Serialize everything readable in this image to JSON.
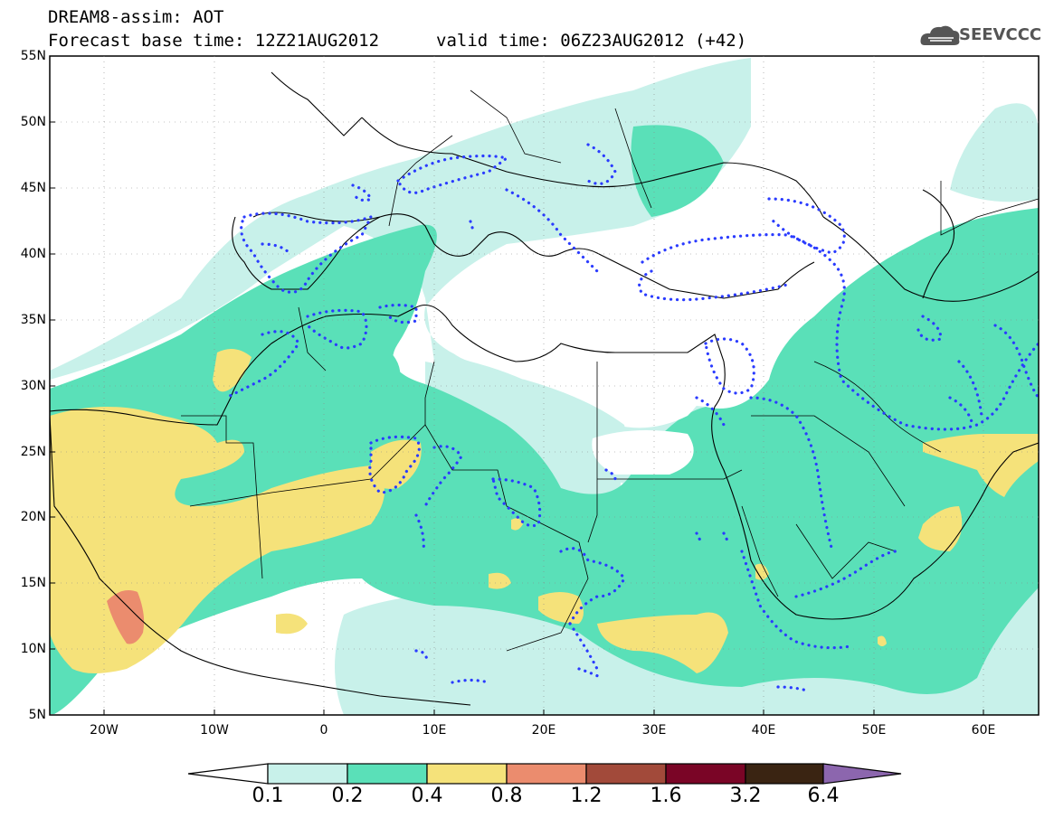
{
  "header": {
    "title": "DREAM8-assim: AOT",
    "base_time": "Forecast base time: 12Z21AUG2012",
    "valid_time": "valid time: 06Z23AUG2012 (+42)",
    "logo_text": "SEEVCCC"
  },
  "map": {
    "lat_labels": [
      "55N",
      "50N",
      "45N",
      "40N",
      "35N",
      "30N",
      "25N",
      "20N",
      "15N",
      "10N",
      "5N"
    ],
    "lon_labels": [
      "20W",
      "10W",
      "0",
      "10E",
      "20E",
      "30E",
      "40E",
      "50E",
      "60E"
    ],
    "lat_range": [
      5,
      55
    ],
    "lon_range": [
      -25,
      65
    ]
  },
  "colorbar": {
    "labels": [
      "0.1",
      "0.2",
      "0.4",
      "0.8",
      "1.2",
      "1.6",
      "3.2",
      "6.4"
    ],
    "colors": [
      "#ffffff",
      "#c8f1ea",
      "#5ae0b8",
      "#f5e27a",
      "#eb8c6e",
      "#a24a3a",
      "#7a0526",
      "#3a2412",
      "#8c66ae"
    ]
  },
  "colors": {
    "aot_0_1": "#c8f1ea",
    "aot_0_2": "#5ae0b8",
    "aot_0_4": "#f5e27a",
    "aot_0_8": "#eb8c6e",
    "dust_contour": "#2a3bff",
    "coast": "#000000"
  }
}
